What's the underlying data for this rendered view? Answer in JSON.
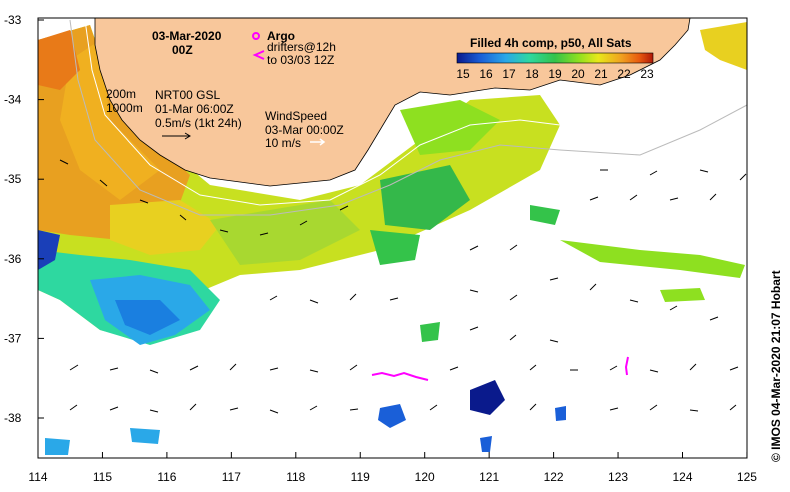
{
  "map": {
    "date": "03-Mar-2020",
    "time": "00Z",
    "argo_label": "Argo",
    "drifters_label": "drifters@12h",
    "drifters_to": "to 03/03 12Z",
    "iso_200": "200m",
    "iso_1000": "1000m",
    "nrt_label": "NRT00 GSL",
    "nrt_date": "01-Mar 06:00Z",
    "nrt_scale": "0.5m/s (1kt 24h)",
    "wind_label": "WindSpeed",
    "wind_date": "03-Mar 00:00Z",
    "wind_scale": "10 m/s",
    "colorbar_title": "Filled 4h comp, p50, All Sats",
    "colorbar_ticks": [
      "15",
      "16",
      "17",
      "18",
      "19",
      "20",
      "21",
      "22",
      "23"
    ],
    "credit": "© IMOS 04-Mar-2020 21:07 Hobart",
    "lat_ticks": [
      "-33",
      "-34",
      "-35",
      "-36",
      "-37",
      "-38"
    ],
    "lon_ticks": [
      "114",
      "115",
      "116",
      "117",
      "118",
      "119",
      "120",
      "121",
      "122",
      "123",
      "124",
      "125"
    ]
  },
  "colors": {
    "land": "#f8c79b",
    "argo": "#ff00ff",
    "drifter": "#ff00ff",
    "colorbar": [
      "#0a1a8c",
      "#1a5fd8",
      "#2aa8e8",
      "#2ed8a0",
      "#34c34a",
      "#8ee020",
      "#e8e81a",
      "#f0a020",
      "#e85a10",
      "#b01808"
    ]
  }
}
